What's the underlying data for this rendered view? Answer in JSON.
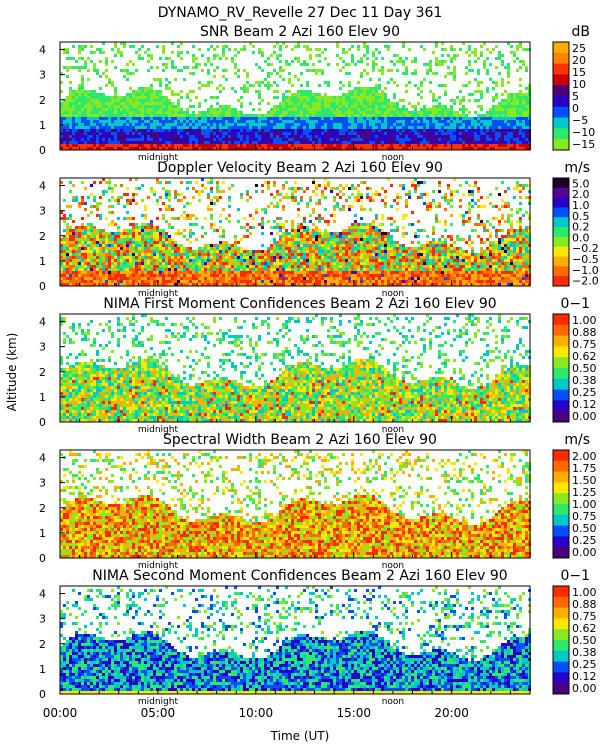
{
  "header": {
    "line1": "DYNAMO_RV_Revelle  27 Dec 11 Day 361",
    "ylabel": "Altitude (km)",
    "xlabel": "Time (UT)"
  },
  "time_axis": {
    "range_hours": [
      0,
      24
    ],
    "tick_hours": [
      0,
      5,
      10,
      15,
      20
    ],
    "tick_labels": [
      "00:00",
      "05:00",
      "10:00",
      "15:00",
      "20:00"
    ],
    "markers": [
      {
        "label": "midnight",
        "hour": 5.0
      },
      {
        "label": "noon",
        "hour": 17.0
      }
    ]
  },
  "chart_data": [
    {
      "type": "heatmap",
      "title": "SNR Beam 2 Azi 160 Elev 90",
      "unit": "dB",
      "ylim": [
        0,
        4.3
      ],
      "yticks": [
        0,
        1,
        2,
        3,
        4
      ],
      "colorbar": {
        "labels": [
          "25",
          "20",
          "15",
          "10",
          "5",
          "0",
          "−5",
          "−10",
          "−15"
        ],
        "colors": [
          "#ffae00",
          "#ff8200",
          "#ff3300",
          "#cc0000",
          "#4a007a",
          "#2a00c8",
          "#0050ff",
          "#00c8c8",
          "#2ee86e",
          "#88e822"
        ]
      }
    },
    {
      "type": "heatmap",
      "title": "Doppler Velocity Beam 2 Azi 160 Elev 90",
      "unit": "m/s",
      "ylim": [
        0,
        4.3
      ],
      "yticks": [
        0,
        1,
        2,
        3,
        4
      ],
      "colorbar": {
        "labels": [
          "5.0",
          "2.0",
          "1.0",
          "0.5",
          "0.2",
          "0.0",
          "−0.2",
          "−0.5",
          "−1.0",
          "−2.0"
        ],
        "colors": [
          "#1a0028",
          "#5a009a",
          "#2a00c8",
          "#0050ff",
          "#00c8c8",
          "#2ee86e",
          "#88e822",
          "#ffe800",
          "#ffae00",
          "#ff6a00",
          "#ff2a00"
        ]
      }
    },
    {
      "type": "heatmap",
      "title": "NIMA First Moment Confidences Beam 2 Azi 160 Elev 90",
      "unit": "0−1",
      "ylim": [
        0,
        4.3
      ],
      "yticks": [
        0,
        1,
        2,
        3,
        4
      ],
      "colorbar": {
        "labels": [
          "1.00",
          "0.88",
          "0.75",
          "0.62",
          "0.50",
          "0.38",
          "0.25",
          "0.12",
          "0.00"
        ],
        "colors": [
          "#ff2a00",
          "#ff6a00",
          "#ffae00",
          "#ffe800",
          "#88e822",
          "#2ee86e",
          "#00c8c8",
          "#0050ff",
          "#2a00c8",
          "#4a007a"
        ]
      }
    },
    {
      "type": "heatmap",
      "title": "Spectral Width Beam 2 Azi 160 Elev 90",
      "unit": "m/s",
      "ylim": [
        0,
        4.3
      ],
      "yticks": [
        0,
        1,
        2,
        3,
        4
      ],
      "colorbar": {
        "labels": [
          "2.00",
          "1.75",
          "1.50",
          "1.25",
          "1.00",
          "0.75",
          "0.50",
          "0.25",
          "0.00"
        ],
        "colors": [
          "#ff2a00",
          "#ff6a00",
          "#ffae00",
          "#ffe800",
          "#88e822",
          "#2ee86e",
          "#00c8c8",
          "#0050ff",
          "#2a00c8",
          "#4a007a"
        ]
      }
    },
    {
      "type": "heatmap",
      "title": "NIMA Second Moment Confidences Beam 2 Azi 160 Elev 90",
      "unit": "0−1",
      "ylim": [
        0,
        4.3
      ],
      "yticks": [
        0,
        1,
        2,
        3,
        4
      ],
      "colorbar": {
        "labels": [
          "1.00",
          "0.88",
          "0.75",
          "0.62",
          "0.50",
          "0.38",
          "0.25",
          "0.12",
          "0.00"
        ],
        "colors": [
          "#ff2a00",
          "#ff6a00",
          "#ffae00",
          "#ffe800",
          "#88e822",
          "#2ee86e",
          "#00c8c8",
          "#0050ff",
          "#2a00c8",
          "#4a007a"
        ]
      }
    }
  ]
}
